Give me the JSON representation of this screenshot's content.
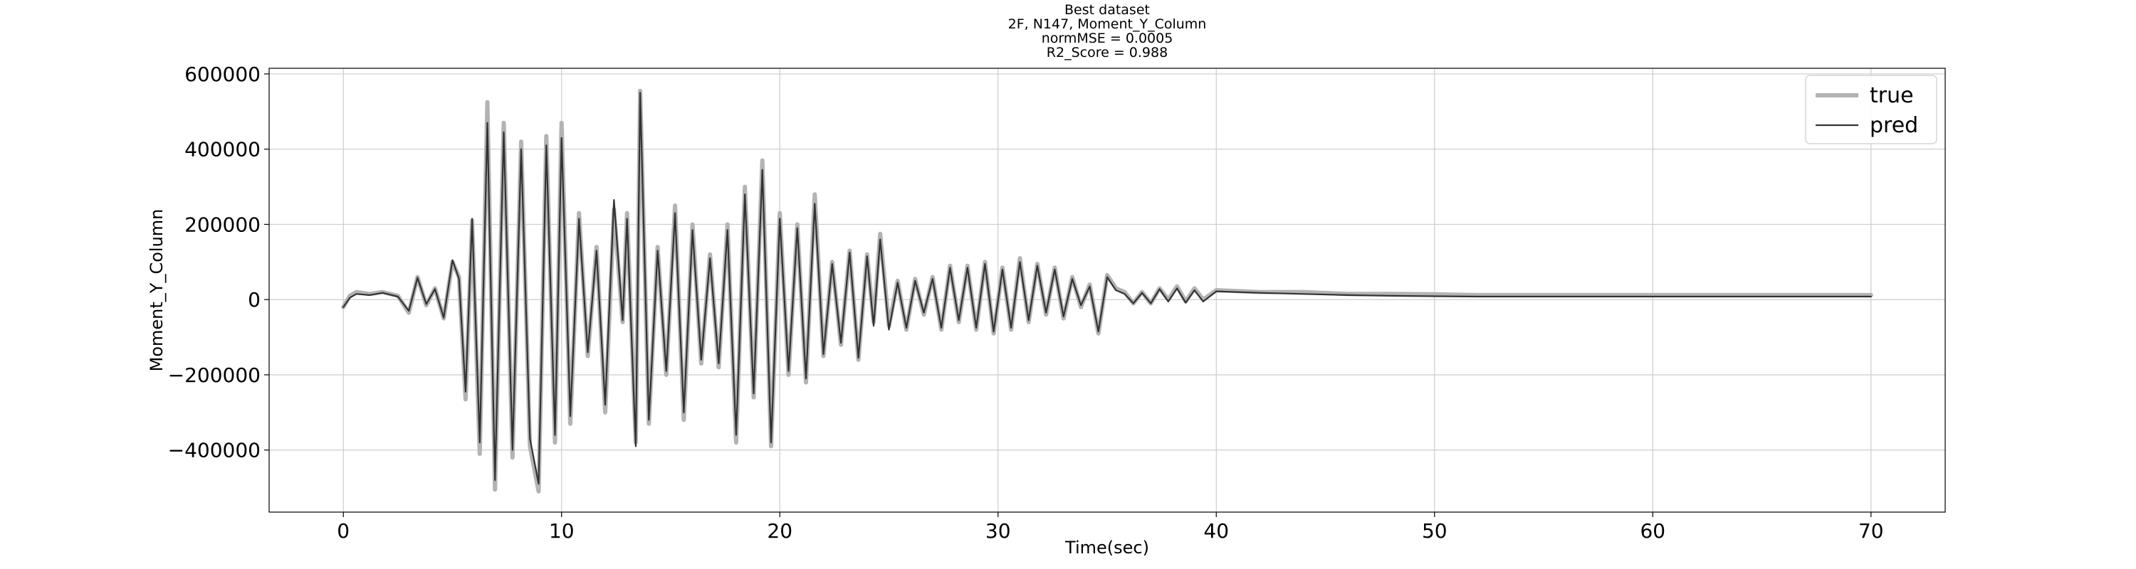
{
  "chart_data": {
    "type": "line",
    "title_lines": [
      "Best dataset",
      "2F, N147, Moment_Y_Column",
      "normMSE = 0.0005",
      "R2_Score = 0.988"
    ],
    "xlabel": "Time(sec)",
    "ylabel": "Moment_Y_Column",
    "xlim": [
      -3.4,
      73.4
    ],
    "ylim": [
      -565000,
      615000
    ],
    "xticks": [
      0,
      10,
      20,
      30,
      40,
      50,
      60,
      70
    ],
    "yticks": [
      -400000,
      -200000,
      0,
      200000,
      400000,
      600000
    ],
    "ytick_labels": [
      "−400000",
      "−200000",
      "0",
      "200000",
      "400000",
      "600000"
    ],
    "grid": true,
    "legend": {
      "location": "top-right",
      "entries": [
        "true",
        "pred"
      ]
    },
    "series": [
      {
        "name": "true",
        "color": "#b3b3b3",
        "points": [
          [
            0,
            -20000
          ],
          [
            0.3,
            10000
          ],
          [
            0.6,
            20000
          ],
          [
            1.2,
            15000
          ],
          [
            1.8,
            20000
          ],
          [
            2.5,
            10000
          ],
          [
            3.0,
            -35000
          ],
          [
            3.4,
            60000
          ],
          [
            3.8,
            -15000
          ],
          [
            4.2,
            30000
          ],
          [
            4.6,
            -50000
          ],
          [
            5.0,
            100000
          ],
          [
            5.3,
            60000
          ],
          [
            5.6,
            -265000
          ],
          [
            5.9,
            210000
          ],
          [
            6.25,
            -410000
          ],
          [
            6.6,
            525000
          ],
          [
            6.95,
            -505000
          ],
          [
            7.35,
            470000
          ],
          [
            7.75,
            -420000
          ],
          [
            8.15,
            420000
          ],
          [
            8.55,
            -390000
          ],
          [
            8.95,
            -510000
          ],
          [
            9.3,
            435000
          ],
          [
            9.7,
            -380000
          ],
          [
            10.0,
            470000
          ],
          [
            10.4,
            -330000
          ],
          [
            10.8,
            230000
          ],
          [
            11.2,
            -150000
          ],
          [
            11.6,
            140000
          ],
          [
            12.0,
            -300000
          ],
          [
            12.4,
            240000
          ],
          [
            12.8,
            -60000
          ],
          [
            13.0,
            230000
          ],
          [
            13.4,
            -380000
          ],
          [
            13.6,
            555000
          ],
          [
            14.0,
            -330000
          ],
          [
            14.4,
            140000
          ],
          [
            14.8,
            -200000
          ],
          [
            15.2,
            250000
          ],
          [
            15.6,
            -320000
          ],
          [
            16.0,
            200000
          ],
          [
            16.4,
            -170000
          ],
          [
            16.8,
            120000
          ],
          [
            17.2,
            -180000
          ],
          [
            17.6,
            200000
          ],
          [
            18.0,
            -380000
          ],
          [
            18.4,
            300000
          ],
          [
            18.8,
            -260000
          ],
          [
            19.2,
            370000
          ],
          [
            19.6,
            -390000
          ],
          [
            20.0,
            230000
          ],
          [
            20.4,
            -200000
          ],
          [
            20.8,
            200000
          ],
          [
            21.2,
            -220000
          ],
          [
            21.6,
            280000
          ],
          [
            22.0,
            -150000
          ],
          [
            22.4,
            100000
          ],
          [
            22.8,
            -120000
          ],
          [
            23.2,
            130000
          ],
          [
            23.6,
            -160000
          ],
          [
            24.0,
            120000
          ],
          [
            24.3,
            -60000
          ],
          [
            24.6,
            175000
          ],
          [
            25.0,
            -70000
          ],
          [
            25.4,
            50000
          ],
          [
            25.8,
            -80000
          ],
          [
            26.2,
            55000
          ],
          [
            26.6,
            -40000
          ],
          [
            27.0,
            60000
          ],
          [
            27.4,
            -80000
          ],
          [
            27.8,
            90000
          ],
          [
            28.2,
            -60000
          ],
          [
            28.6,
            90000
          ],
          [
            29.0,
            -80000
          ],
          [
            29.4,
            100000
          ],
          [
            29.8,
            -90000
          ],
          [
            30.2,
            85000
          ],
          [
            30.6,
            -80000
          ],
          [
            31.0,
            110000
          ],
          [
            31.4,
            -60000
          ],
          [
            31.8,
            95000
          ],
          [
            32.2,
            -40000
          ],
          [
            32.6,
            85000
          ],
          [
            33.0,
            -50000
          ],
          [
            33.4,
            60000
          ],
          [
            33.8,
            -20000
          ],
          [
            34.2,
            40000
          ],
          [
            34.6,
            -90000
          ],
          [
            35.0,
            65000
          ],
          [
            35.4,
            30000
          ],
          [
            35.8,
            20000
          ],
          [
            36.2,
            -10000
          ],
          [
            36.6,
            20000
          ],
          [
            37.0,
            -10000
          ],
          [
            37.4,
            30000
          ],
          [
            37.8,
            0
          ],
          [
            38.2,
            35000
          ],
          [
            38.6,
            -5000
          ],
          [
            39.0,
            30000
          ],
          [
            39.4,
            0
          ],
          [
            40.0,
            25000
          ],
          [
            42.0,
            20000
          ],
          [
            44.0,
            20000
          ],
          [
            46.0,
            15000
          ],
          [
            48.0,
            15000
          ],
          [
            50.0,
            14000
          ],
          [
            52.0,
            12000
          ],
          [
            56.0,
            12000
          ],
          [
            60.0,
            12000
          ],
          [
            65.0,
            12000
          ],
          [
            70.0,
            12000
          ]
        ]
      },
      {
        "name": "pred",
        "color": "#333333",
        "points": [
          [
            0,
            -20000
          ],
          [
            0.3,
            5000
          ],
          [
            0.6,
            15000
          ],
          [
            1.2,
            12000
          ],
          [
            1.8,
            18000
          ],
          [
            2.5,
            8000
          ],
          [
            3.0,
            -30000
          ],
          [
            3.4,
            58000
          ],
          [
            3.8,
            -12000
          ],
          [
            4.2,
            28000
          ],
          [
            4.6,
            -48000
          ],
          [
            5.0,
            105000
          ],
          [
            5.3,
            55000
          ],
          [
            5.6,
            -245000
          ],
          [
            5.9,
            215000
          ],
          [
            6.25,
            -380000
          ],
          [
            6.6,
            470000
          ],
          [
            6.95,
            -480000
          ],
          [
            7.35,
            445000
          ],
          [
            7.75,
            -400000
          ],
          [
            8.15,
            400000
          ],
          [
            8.55,
            -370000
          ],
          [
            8.95,
            -490000
          ],
          [
            9.3,
            410000
          ],
          [
            9.7,
            -360000
          ],
          [
            10.0,
            430000
          ],
          [
            10.4,
            -310000
          ],
          [
            10.8,
            215000
          ],
          [
            11.2,
            -140000
          ],
          [
            11.6,
            130000
          ],
          [
            12.0,
            -280000
          ],
          [
            12.4,
            265000
          ],
          [
            12.8,
            -55000
          ],
          [
            13.0,
            215000
          ],
          [
            13.4,
            -390000
          ],
          [
            13.6,
            550000
          ],
          [
            14.0,
            -320000
          ],
          [
            14.4,
            130000
          ],
          [
            14.8,
            -190000
          ],
          [
            15.2,
            230000
          ],
          [
            15.6,
            -300000
          ],
          [
            16.0,
            185000
          ],
          [
            16.4,
            -160000
          ],
          [
            16.8,
            110000
          ],
          [
            17.2,
            -170000
          ],
          [
            17.6,
            185000
          ],
          [
            18.0,
            -360000
          ],
          [
            18.4,
            280000
          ],
          [
            18.8,
            -250000
          ],
          [
            19.2,
            345000
          ],
          [
            19.6,
            -380000
          ],
          [
            20.0,
            215000
          ],
          [
            20.4,
            -190000
          ],
          [
            20.8,
            190000
          ],
          [
            21.2,
            -210000
          ],
          [
            21.6,
            255000
          ],
          [
            22.0,
            -145000
          ],
          [
            22.4,
            95000
          ],
          [
            22.8,
            -115000
          ],
          [
            23.2,
            125000
          ],
          [
            23.6,
            -155000
          ],
          [
            24.0,
            115000
          ],
          [
            24.3,
            -70000
          ],
          [
            24.6,
            160000
          ],
          [
            25.0,
            -80000
          ],
          [
            25.4,
            45000
          ],
          [
            25.8,
            -75000
          ],
          [
            26.2,
            50000
          ],
          [
            26.6,
            -35000
          ],
          [
            27.0,
            55000
          ],
          [
            27.4,
            -75000
          ],
          [
            27.8,
            85000
          ],
          [
            28.2,
            -55000
          ],
          [
            28.6,
            85000
          ],
          [
            29.0,
            -75000
          ],
          [
            29.4,
            95000
          ],
          [
            29.8,
            -85000
          ],
          [
            30.2,
            80000
          ],
          [
            30.6,
            -75000
          ],
          [
            31.0,
            100000
          ],
          [
            31.4,
            -55000
          ],
          [
            31.8,
            90000
          ],
          [
            32.2,
            -35000
          ],
          [
            32.6,
            80000
          ],
          [
            33.0,
            -45000
          ],
          [
            33.4,
            55000
          ],
          [
            33.8,
            -15000
          ],
          [
            34.2,
            35000
          ],
          [
            34.6,
            -85000
          ],
          [
            35.0,
            60000
          ],
          [
            35.4,
            25000
          ],
          [
            35.8,
            15000
          ],
          [
            36.2,
            -10000
          ],
          [
            36.6,
            18000
          ],
          [
            37.0,
            -10000
          ],
          [
            37.4,
            28000
          ],
          [
            37.8,
            -5000
          ],
          [
            38.2,
            30000
          ],
          [
            38.6,
            -8000
          ],
          [
            39.0,
            25000
          ],
          [
            39.4,
            -5000
          ],
          [
            40.0,
            22000
          ],
          [
            42.0,
            18000
          ],
          [
            44.0,
            15000
          ],
          [
            46.0,
            12000
          ],
          [
            48.0,
            10000
          ],
          [
            50.0,
            9000
          ],
          [
            52.0,
            8000
          ],
          [
            56.0,
            8000
          ],
          [
            60.0,
            8000
          ],
          [
            65.0,
            8000
          ],
          [
            70.0,
            8000
          ]
        ]
      }
    ]
  }
}
